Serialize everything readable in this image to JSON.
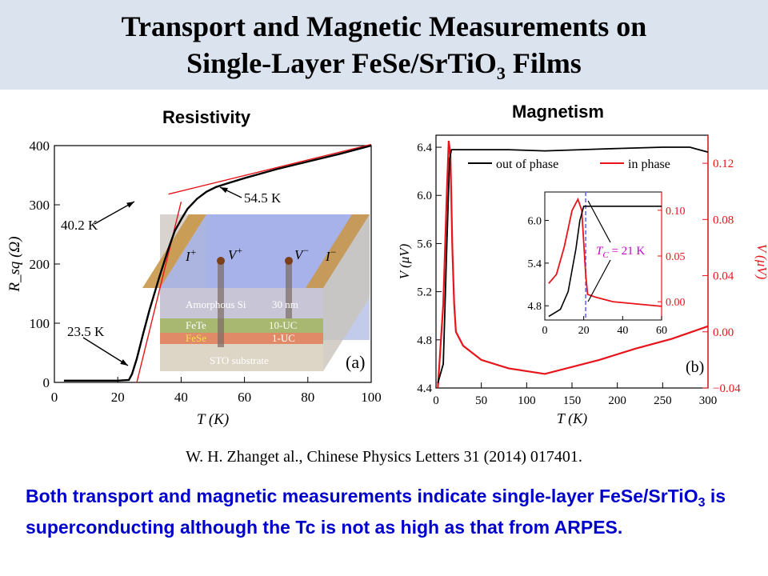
{
  "slide": {
    "title_line1": "Transport and Magnetic Measurements on",
    "title_line2_pre": "Single-Layer FeSe/SrTiO",
    "title_line2_sub": "3",
    "title_line2_post": " Films",
    "label_left": "Resistivity",
    "label_right": "Magnetism",
    "citation": "W. H. Zhanget al., Chinese Physics Letters 31 (2014) 017401.",
    "conclusion_pre": "Both transport and magnetic measurements indicate single-layer FeSe/SrTiO",
    "conclusion_sub": "3",
    "conclusion_post": " is superconducting although the Tc is not as high as that from ARPES."
  },
  "colors": {
    "banner": "#dbe3ef",
    "conclusion_text": "#0000cc",
    "in_phase": "#e8141a",
    "out_of_phase": "#000000",
    "tc_line": "#6666ff",
    "tc_label": "#cc00cc"
  },
  "chart_data": [
    {
      "type": "line",
      "panel": "(a)",
      "xlabel": "T (K)",
      "ylabel": "R_sq (Ω)",
      "xlim": [
        0,
        100
      ],
      "ylim": [
        0,
        400
      ],
      "xticks": [
        0,
        20,
        40,
        60,
        80,
        100
      ],
      "yticks": [
        0,
        100,
        200,
        300,
        400
      ],
      "series": [
        {
          "x": [
            3,
            10,
            20,
            23.5,
            24.5,
            26,
            28,
            30,
            33,
            36,
            38,
            40.2,
            42,
            45,
            48,
            51,
            54.5,
            60,
            70,
            80,
            90,
            100
          ],
          "y": [
            3,
            3,
            3,
            4,
            14,
            40,
            82,
            122,
            176,
            226,
            256,
            277,
            293,
            310,
            322,
            330,
            336,
            345,
            360,
            373,
            386,
            400
          ]
        }
      ],
      "fit_lines": [
        {
          "x": [
            26,
            40
          ],
          "y": [
            0,
            305
          ]
        },
        {
          "x": [
            36,
            100
          ],
          "y": [
            318,
            402
          ]
        }
      ],
      "annotations": [
        "23.5 K",
        "40.2 K",
        "54.5 K"
      ],
      "inset": {
        "labels": {
          "i_plus": "I",
          "v_plus": "V",
          "v_minus": "V",
          "i_minus": "I",
          "plus": "+",
          "minus": "−"
        },
        "layers": [
          {
            "name": "Amorphous Si",
            "thickness": "30 nm"
          },
          {
            "name": "FeTe",
            "thickness": "10-UC"
          },
          {
            "name": "FeSe",
            "thickness": "1-UC"
          },
          {
            "name": "STO  substrate",
            "thickness": ""
          }
        ]
      }
    },
    {
      "type": "line",
      "panel": "(b)",
      "xlabel": "T (K)",
      "ylabel": "V (μV)",
      "ylabel_right": "V (μV)",
      "xlim": [
        0,
        300
      ],
      "ylim": [
        4.4,
        6.5
      ],
      "ylim_right": [
        -0.04,
        0.14
      ],
      "xticks": [
        0,
        50,
        100,
        150,
        200,
        250,
        300
      ],
      "yticks": [
        4.4,
        4.8,
        5.2,
        5.6,
        6.0,
        6.4
      ],
      "yticks_right": [
        -0.04,
        0.0,
        0.04,
        0.08,
        0.12
      ],
      "series": [
        {
          "name": "out of phase",
          "axis": "left",
          "x": [
            2,
            8,
            12,
            15,
            17,
            20,
            40,
            80,
            120,
            160,
            200,
            250,
            280,
            290,
            300
          ],
          "y": [
            4.44,
            4.6,
            5.6,
            6.3,
            6.38,
            6.38,
            6.38,
            6.38,
            6.37,
            6.38,
            6.39,
            6.4,
            6.4,
            6.38,
            6.36
          ]
        },
        {
          "name": "in phase",
          "axis": "right",
          "x": [
            2,
            8,
            12,
            14,
            16,
            18,
            20,
            22,
            30,
            50,
            80,
            120,
            150,
            180,
            220,
            260,
            300
          ],
          "y": [
            -0.04,
            0.02,
            0.1,
            0.136,
            0.125,
            0.06,
            0.02,
            0.0,
            -0.01,
            -0.02,
            -0.026,
            -0.03,
            -0.025,
            -0.02,
            -0.012,
            -0.005,
            0.004
          ]
        }
      ],
      "inset": {
        "xlim": [
          0,
          60
        ],
        "ylim": [
          4.6,
          6.4
        ],
        "ylim_right": [
          -0.02,
          0.12
        ],
        "xticks": [
          0,
          20,
          40,
          60
        ],
        "yticks": [
          4.8,
          5.4,
          6.0
        ],
        "yticks_right": [
          0.0,
          0.05,
          0.1
        ],
        "tc_label": "T",
        "tc_sub": "C",
        "tc_value": " = 21 K",
        "tc": 21,
        "series": [
          {
            "name": "out of phase",
            "x": [
              2,
              8,
              12,
              16,
              18,
              20,
              22,
              30,
              40,
              60
            ],
            "y": [
              4.65,
              4.75,
              5.0,
              5.6,
              6.0,
              6.2,
              6.2,
              6.2,
              6.2,
              6.2
            ]
          },
          {
            "name": "in phase",
            "x": [
              2,
              6,
              10,
              14,
              17,
              19,
              21,
              22,
              26,
              35,
              60
            ],
            "y": [
              0.02,
              0.03,
              0.06,
              0.1,
              0.112,
              0.1,
              0.03,
              0.008,
              0.005,
              0.0,
              -0.005
            ]
          }
        ]
      },
      "legend_position": "top"
    }
  ]
}
